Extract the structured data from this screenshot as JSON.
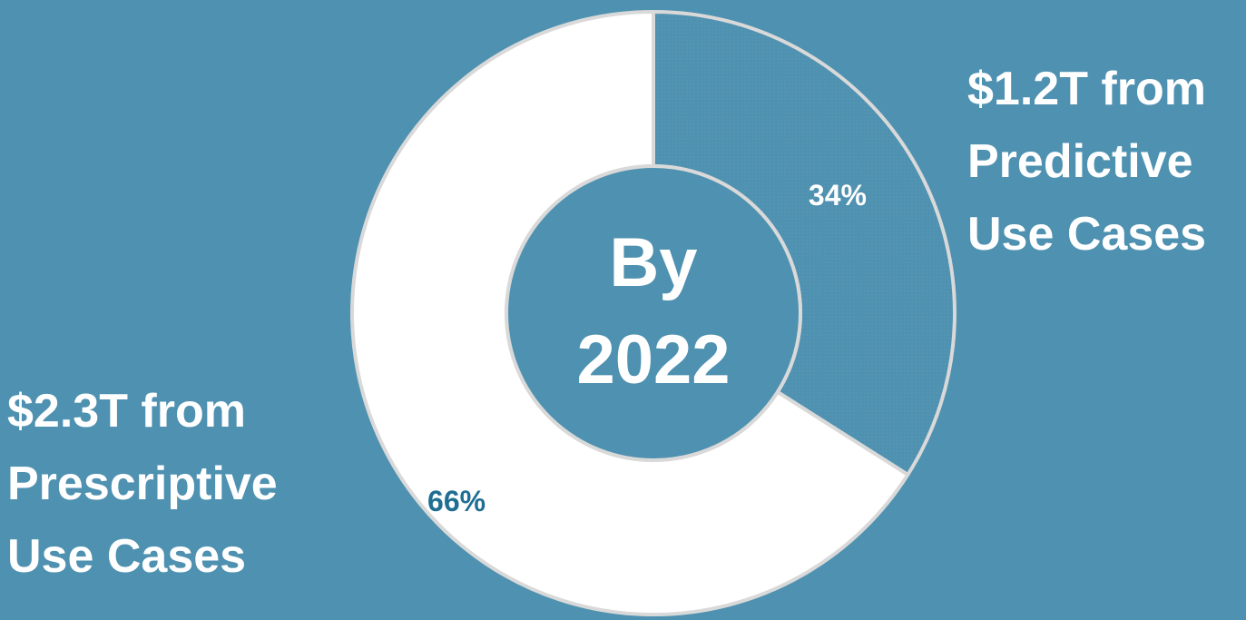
{
  "chart_data": {
    "type": "pie",
    "variant": "donut",
    "center_label": [
      "By",
      "2022"
    ],
    "slices": [
      {
        "label": "Predictive",
        "value": 34,
        "value_label": "34%",
        "callout": [
          "$1.2T from",
          "Predictive",
          "Use Cases"
        ],
        "color": "#4e91b0",
        "label_color": "#ffffff"
      },
      {
        "label": "Prescriptive",
        "value": 66,
        "value_label": "66%",
        "callout": [
          "$2.3T from",
          "Prescriptive",
          "Use Cases"
        ],
        "color": "#ffffff",
        "label_color": "#1f6f92"
      }
    ],
    "start_angle_deg": 0,
    "direction": "clockwise",
    "background_color": "#4e91b0",
    "outline_color": "#d9d9d9"
  }
}
